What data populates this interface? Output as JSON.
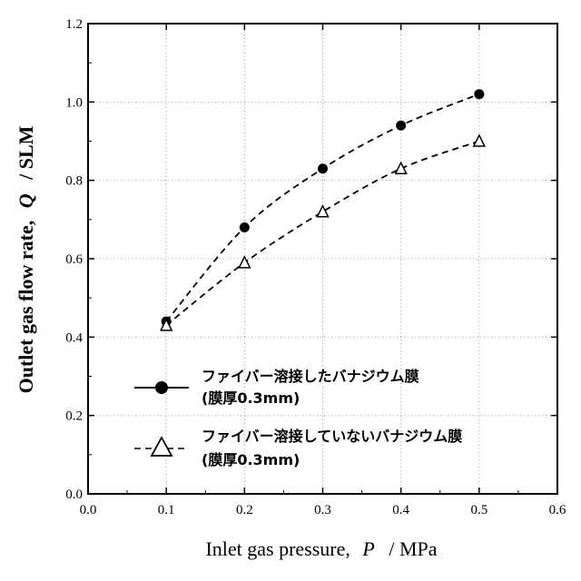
{
  "chart_data": {
    "type": "line",
    "xlabel": {
      "prefix": "Inlet gas pressure,",
      "symbol": "P",
      "unit": "/  MPa"
    },
    "ylabel": {
      "prefix": "Outlet gas flow rate,",
      "symbol": "Q",
      "unit": "/  SLM"
    },
    "xlim": [
      0.0,
      0.6
    ],
    "ylim": [
      0.0,
      1.2
    ],
    "x_ticks": [
      "0.0",
      "0.1",
      "0.2",
      "0.3",
      "0.4",
      "0.5",
      "0.6"
    ],
    "y_ticks": [
      "0.0",
      "0.2",
      "0.4",
      "0.6",
      "0.8",
      "1.0",
      "1.2"
    ],
    "grid": true,
    "legend_position": "lower-right",
    "series": [
      {
        "name": "ファイバー溶接したバナジウム膜",
        "name_line2": "(膜厚0.3mm)",
        "marker": "filled-circle",
        "line_style": "dashed",
        "x": [
          0.1,
          0.2,
          0.3,
          0.4,
          0.5
        ],
        "y": [
          0.44,
          0.68,
          0.83,
          0.94,
          1.02
        ]
      },
      {
        "name": "ファイバー溶接していないバナジウム膜",
        "name_line2": "(膜厚0.3mm)",
        "marker": "open-triangle",
        "line_style": "dashed",
        "x": [
          0.1,
          0.2,
          0.3,
          0.4,
          0.5
        ],
        "y": [
          0.43,
          0.59,
          0.72,
          0.83,
          0.9
        ]
      }
    ],
    "colors": {
      "line": "#000000",
      "grid": "#999999",
      "background": "#ffffff"
    }
  }
}
